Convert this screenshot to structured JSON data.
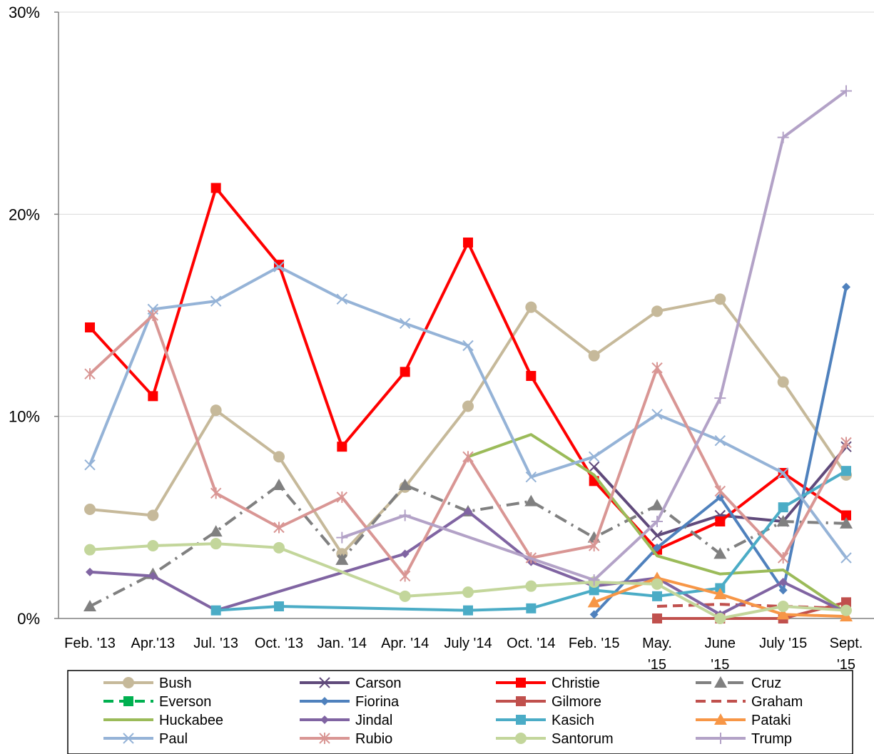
{
  "chart_data": {
    "type": "line",
    "title": "",
    "xlabel": "",
    "ylabel": "",
    "ylim": [
      0,
      30
    ],
    "y_ticks": [
      "0%",
      "10%",
      "20%",
      "30%"
    ],
    "y_tick_values": [
      0,
      10,
      20,
      30
    ],
    "categories": [
      [
        "Feb. '13"
      ],
      [
        "Apr.'13"
      ],
      [
        "Jul. '13"
      ],
      [
        "Oct. '13"
      ],
      [
        "Jan. '14"
      ],
      [
        "Apr. '14"
      ],
      [
        "July '14"
      ],
      [
        "Oct. '14"
      ],
      [
        "Feb. '15"
      ],
      [
        "May.",
        "'15"
      ],
      [
        "June",
        "'15"
      ],
      [
        "July '15"
      ],
      [
        "Sept.",
        "'15"
      ]
    ],
    "grid": "horizontal",
    "legend_position": "bottom",
    "series": [
      {
        "name": "Bush",
        "color": "#C6B99A",
        "marker": "circle",
        "dash": "solid",
        "values": [
          5.4,
          5.1,
          10.3,
          8.0,
          3.2,
          6.5,
          10.5,
          15.4,
          13.0,
          15.2,
          15.8,
          11.7,
          7.1
        ]
      },
      {
        "name": "Carson",
        "color": "#604A7B",
        "marker": "x",
        "dash": "solid",
        "values": [
          null,
          null,
          null,
          null,
          null,
          null,
          null,
          null,
          7.5,
          4.1,
          5.1,
          4.8,
          8.5
        ]
      },
      {
        "name": "Christie",
        "color": "#FF0000",
        "marker": "square",
        "dash": "solid",
        "values": [
          14.4,
          11.0,
          21.3,
          17.5,
          8.5,
          12.2,
          18.6,
          12.0,
          6.8,
          3.4,
          4.8,
          7.2,
          5.1
        ]
      },
      {
        "name": "Cruz",
        "color": "#808080",
        "marker": "triangle",
        "dash": "dashdot",
        "values": [
          0.6,
          2.2,
          4.3,
          6.6,
          2.9,
          6.6,
          5.3,
          5.8,
          4.0,
          5.6,
          3.2,
          4.8,
          4.7
        ]
      },
      {
        "name": "Everson",
        "color": "#00B050",
        "marker": "square",
        "dash": "dash",
        "values": [
          null,
          null,
          null,
          null,
          null,
          null,
          null,
          null,
          null,
          null,
          null,
          null,
          null
        ]
      },
      {
        "name": "Fiorina",
        "color": "#4F81BD",
        "marker": "diamond",
        "dash": "solid",
        "values": [
          null,
          null,
          null,
          null,
          null,
          null,
          null,
          null,
          0.2,
          3.5,
          6.0,
          1.4,
          16.4
        ]
      },
      {
        "name": "Gilmore",
        "color": "#C0504D",
        "marker": "square",
        "dash": "solid",
        "values": [
          null,
          null,
          null,
          null,
          null,
          null,
          null,
          null,
          null,
          0.0,
          0.0,
          0.0,
          0.8
        ]
      },
      {
        "name": "Graham",
        "color": "#C0504D",
        "marker": "none",
        "dash": "dash",
        "values": [
          null,
          null,
          null,
          null,
          null,
          null,
          null,
          null,
          null,
          0.6,
          0.7,
          0.6,
          0.5
        ]
      },
      {
        "name": "Huckabee",
        "color": "#9BBB59",
        "marker": "none",
        "dash": "solid",
        "values": [
          null,
          null,
          null,
          null,
          null,
          null,
          8.0,
          9.1,
          7.1,
          3.1,
          2.2,
          2.4,
          0.3
        ]
      },
      {
        "name": "Jindal",
        "color": "#8064A2",
        "marker": "diamond",
        "dash": "solid",
        "values": [
          2.3,
          2.1,
          0.4,
          null,
          null,
          3.2,
          5.3,
          2.8,
          1.6,
          2.0,
          0.2,
          1.8,
          0.3
        ]
      },
      {
        "name": "Kasich",
        "color": "#4BACC6",
        "marker": "square",
        "dash": "solid",
        "values": [
          null,
          null,
          0.4,
          0.6,
          null,
          null,
          0.4,
          0.5,
          1.4,
          1.1,
          1.5,
          5.5,
          7.3
        ]
      },
      {
        "name": "Pataki",
        "color": "#F79646",
        "marker": "triangle",
        "dash": "solid",
        "values": [
          null,
          null,
          null,
          null,
          null,
          null,
          null,
          null,
          0.8,
          2.0,
          1.2,
          0.2,
          0.1
        ]
      },
      {
        "name": "Paul",
        "color": "#95B3D7",
        "marker": "x",
        "dash": "solid",
        "values": [
          7.6,
          15.3,
          15.7,
          17.4,
          15.8,
          14.6,
          13.5,
          7.0,
          8.0,
          10.1,
          8.8,
          7.2,
          3.0
        ]
      },
      {
        "name": "Rubio",
        "color": "#D99694",
        "marker": "star",
        "dash": "solid",
        "values": [
          12.1,
          15.0,
          6.2,
          4.5,
          6.0,
          2.1,
          8.0,
          3.0,
          3.6,
          12.4,
          6.3,
          3.0,
          8.7
        ]
      },
      {
        "name": "Santorum",
        "color": "#C3D69B",
        "marker": "circle",
        "dash": "solid",
        "values": [
          3.4,
          3.6,
          3.7,
          3.5,
          null,
          1.1,
          1.3,
          1.6,
          1.8,
          1.7,
          0.0,
          0.6,
          0.4
        ]
      },
      {
        "name": "Trump",
        "color": "#B3A2C7",
        "marker": "plus",
        "dash": "solid",
        "values": [
          null,
          null,
          null,
          null,
          4.0,
          5.1,
          null,
          null,
          1.9,
          4.8,
          10.9,
          23.8,
          26.1
        ]
      }
    ]
  }
}
